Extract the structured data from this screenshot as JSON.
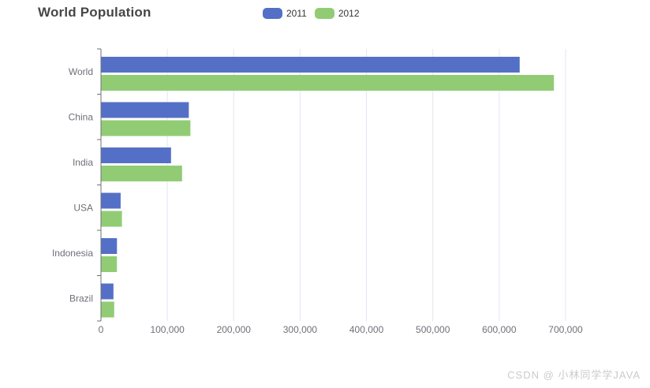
{
  "page": {
    "title": "World Population",
    "watermark": "CSDN @ 小林同学学JAVA"
  },
  "colors": {
    "series_2011": "#5470c6",
    "series_2012": "#91cc75",
    "axis_line": "#6E7079",
    "axis_label": "#6E7079",
    "grid_line": "#E0E6F1",
    "title_text": "#464646",
    "legend_text": "#333333",
    "watermark_text": "#cbcbcb",
    "background": "#ffffff"
  },
  "chart_data": {
    "type": "bar",
    "orientation": "horizontal",
    "title": "World Population",
    "categories": [
      "World",
      "China",
      "India",
      "USA",
      "Indonesia",
      "Brazil"
    ],
    "series": [
      {
        "name": "2011",
        "color": "#5470c6",
        "values": [
          630230,
          131744,
          104970,
          29034,
          23489,
          18203
        ]
      },
      {
        "name": "2012",
        "color": "#91cc75",
        "values": [
          681807,
          134141,
          121594,
          31000,
          23438,
          19325
        ]
      }
    ],
    "xlabel": "",
    "ylabel": "",
    "xlim": [
      0,
      700000
    ],
    "x_ticks": [
      0,
      100000,
      200000,
      300000,
      400000,
      500000,
      600000,
      700000
    ],
    "x_tick_labels": [
      "0",
      "100,000",
      "200,000",
      "300,000",
      "400,000",
      "500,000",
      "600,000",
      "700,000"
    ],
    "grid": true,
    "legend_position": "top-center",
    "legend": [
      "2011",
      "2012"
    ]
  }
}
